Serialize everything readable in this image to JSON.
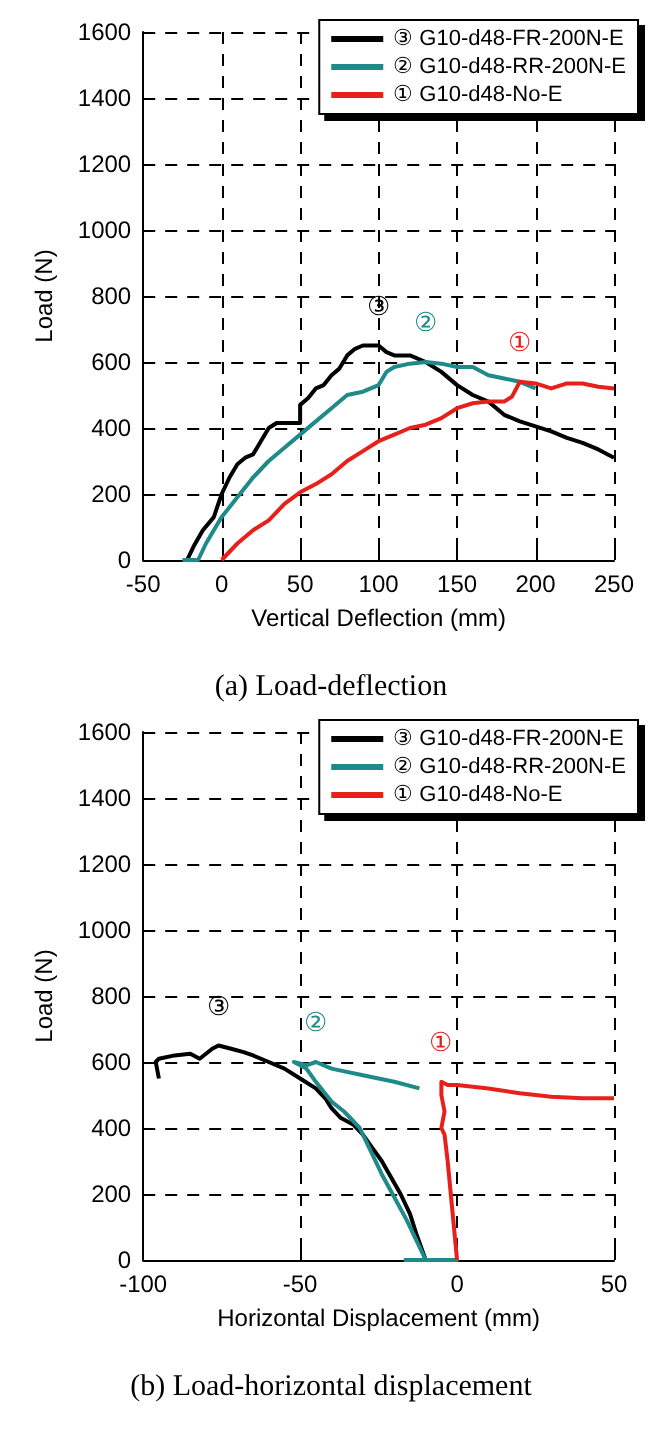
{
  "chart_data": [
    {
      "type": "line",
      "title": "(a) Load-deflection",
      "xlabel": "Vertical Deflection (mm)",
      "ylabel": "Load (N)",
      "xlim": [
        -50,
        250
      ],
      "xticks": [
        -50,
        0,
        50,
        100,
        150,
        200,
        250
      ],
      "ylim": [
        0,
        1600
      ],
      "yticks": [
        0,
        200,
        400,
        600,
        800,
        1000,
        1200,
        1400,
        1600
      ],
      "grid": true,
      "legend": "top right",
      "marker": "none",
      "series": [
        {
          "name": "③ G10-d48-FR-200N-E",
          "color": "#000000",
          "x": [
            -22,
            -18,
            -12,
            -5,
            0,
            5,
            10,
            15,
            20,
            25,
            30,
            35,
            50,
            50,
            55,
            60,
            65,
            70,
            75,
            80,
            85,
            90,
            100,
            105,
            110,
            120,
            130,
            140,
            150,
            160,
            170,
            180,
            190,
            200,
            210,
            220,
            230,
            240,
            250
          ],
          "values": [
            0,
            40,
            90,
            130,
            200,
            250,
            290,
            310,
            320,
            360,
            400,
            415,
            415,
            470,
            490,
            520,
            530,
            560,
            580,
            620,
            640,
            650,
            650,
            630,
            620,
            620,
            600,
            570,
            530,
            500,
            480,
            440,
            420,
            405,
            390,
            370,
            355,
            335,
            310
          ]
        },
        {
          "name": "② G10-d48-RR-200N-E",
          "color": "#1f8a8a",
          "x": [
            -25,
            -15,
            -10,
            0,
            10,
            20,
            30,
            40,
            50,
            60,
            70,
            80,
            90,
            100,
            105,
            110,
            120,
            130,
            140,
            150,
            160,
            170,
            180,
            190,
            200
          ],
          "values": [
            0,
            0,
            50,
            130,
            190,
            250,
            300,
            340,
            380,
            420,
            460,
            500,
            510,
            530,
            570,
            585,
            595,
            600,
            595,
            585,
            585,
            560,
            550,
            540,
            520
          ]
        },
        {
          "name": "① G10-d48-No-E",
          "color": "#e8201c",
          "x": [
            0,
            10,
            20,
            30,
            40,
            50,
            60,
            70,
            80,
            90,
            100,
            110,
            120,
            130,
            140,
            150,
            160,
            170,
            180,
            185,
            190,
            200,
            210,
            220,
            230,
            240,
            250
          ],
          "values": [
            0,
            50,
            90,
            120,
            170,
            205,
            230,
            260,
            300,
            330,
            360,
            380,
            400,
            410,
            430,
            460,
            475,
            480,
            480,
            495,
            540,
            535,
            520,
            535,
            535,
            525,
            520
          ]
        }
      ],
      "annotations": [
        "③",
        "②",
        "①"
      ]
    },
    {
      "type": "line",
      "title": "(b) Load-horizontal displacement",
      "xlabel": "Horizontal Displacement (mm)",
      "ylabel": "Load (N)",
      "xlim": [
        -100,
        50
      ],
      "xticks": [
        -100,
        -50,
        0,
        50
      ],
      "ylim": [
        0,
        1600
      ],
      "yticks": [
        0,
        200,
        400,
        600,
        800,
        1000,
        1200,
        1400,
        1600
      ],
      "grid": true,
      "legend": "top right",
      "marker": "none",
      "series": [
        {
          "name": "③ G10-d48-FR-200N-E",
          "color": "#000000",
          "x": [
            -95,
            -96,
            -95,
            -90,
            -85,
            -82,
            -78,
            -76,
            -72,
            -68,
            -65,
            -60,
            -55,
            -50,
            -45,
            -42,
            -40,
            -37,
            -33,
            -30,
            -27,
            -24,
            -21,
            -18,
            -15,
            -13,
            -10
          ],
          "values": [
            550,
            600,
            610,
            620,
            625,
            610,
            640,
            650,
            640,
            630,
            620,
            600,
            580,
            550,
            520,
            490,
            460,
            430,
            410,
            380,
            340,
            300,
            250,
            200,
            140,
            80,
            0
          ]
        },
        {
          "name": "② G10-d48-RR-200N-E",
          "color": "#1f8a8a",
          "x": [
            -17,
            0,
            -10,
            -13,
            -16,
            -20,
            -24,
            -27,
            -31,
            -36,
            -40,
            -45,
            -48,
            -52,
            -48,
            -45,
            -40,
            -30,
            -20,
            -12
          ],
          "values": [
            0,
            0,
            0,
            60,
            120,
            190,
            260,
            320,
            400,
            450,
            480,
            540,
            580,
            600,
            590,
            600,
            580,
            560,
            540,
            520
          ]
        },
        {
          "name": "① G10-d48-No-E",
          "color": "#e8201c",
          "x": [
            0,
            -1,
            -2,
            -3,
            -4,
            -5,
            -4,
            -5,
            -5,
            -3,
            0,
            10,
            20,
            30,
            40,
            50
          ],
          "values": [
            0,
            100,
            200,
            300,
            380,
            400,
            450,
            500,
            540,
            530,
            530,
            520,
            505,
            495,
            490,
            490
          ]
        }
      ],
      "annotations": [
        "③",
        "②",
        "①"
      ]
    }
  ]
}
